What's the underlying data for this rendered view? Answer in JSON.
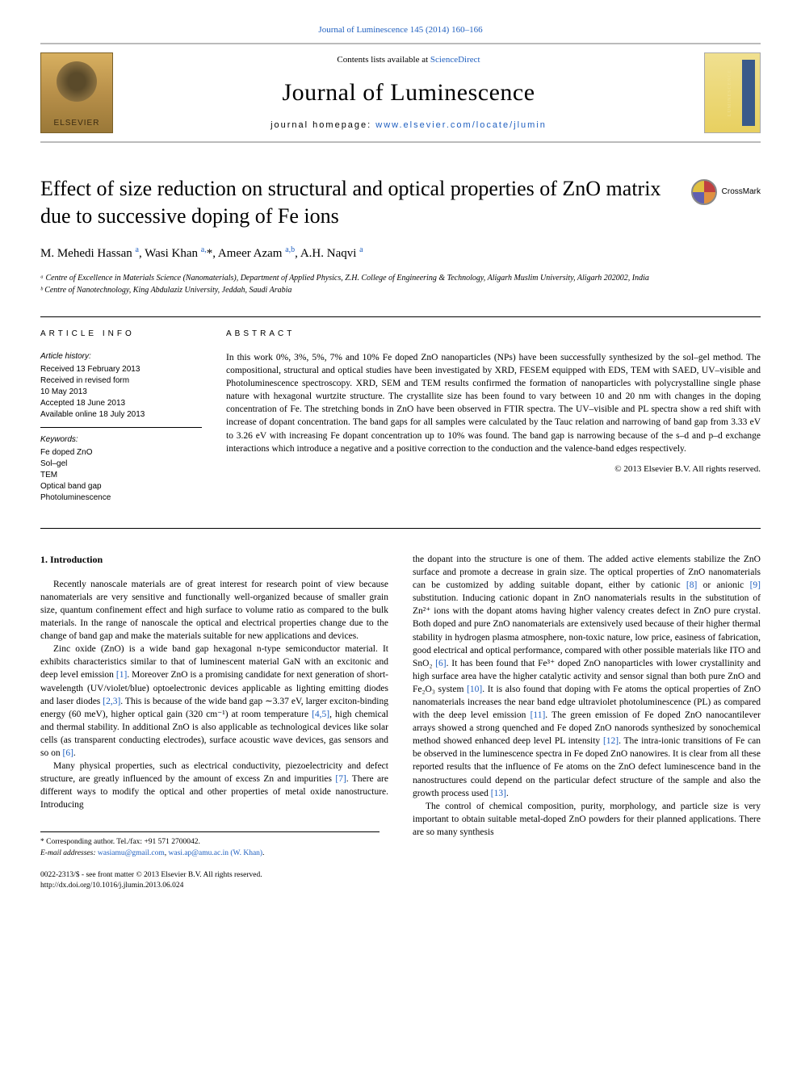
{
  "top_link": "Journal of Luminescence 145 (2014) 160–166",
  "header": {
    "contents_prefix": "Contents lists available at ",
    "contents_link": "ScienceDirect",
    "journal_name": "Journal of Luminescence",
    "homepage_prefix": "journal homepage: ",
    "homepage_link": "www.elsevier.com/locate/jlumin"
  },
  "crossmark_label": "CrossMark",
  "title": "Effect of size reduction on structural and optical properties of ZnO matrix due to successive doping of Fe ions",
  "authors_html": "M. Mehedi Hassan <sup>a</sup>, Wasi Khan <sup>a,</sup><span class='ast'>*</span>, Ameer Azam <sup>a,b</sup>, A.H. Naqvi <sup>a</sup>",
  "affiliations": [
    "ᵃ Centre of Excellence in Materials Science (Nanomaterials), Department of Applied Physics, Z.H. College of Engineering & Technology, Aligarh Muslim University, Aligarh 202002, India",
    "ᵇ Centre of Nanotechnology, King Abdulaziz University, Jeddah, Saudi Arabia"
  ],
  "article_info": {
    "heading": "article info",
    "history_label": "Article history:",
    "history": [
      "Received 13 February 2013",
      "Received in revised form",
      "10 May 2013",
      "Accepted 18 June 2013",
      "Available online 18 July 2013"
    ],
    "keywords_label": "Keywords:",
    "keywords": [
      "Fe doped ZnO",
      "Sol–gel",
      "TEM",
      "Optical band gap",
      "Photoluminescence"
    ]
  },
  "abstract": {
    "heading": "abstract",
    "text": "In this work 0%, 3%, 5%, 7% and 10% Fe doped ZnO nanoparticles (NPs) have been successfully synthesized by the sol–gel method. The compositional, structural and optical studies have been investigated by XRD, FESEM equipped with EDS, TEM with SAED, UV–visible and Photoluminescence spectroscopy. XRD, SEM and TEM results confirmed the formation of nanoparticles with polycrystalline single phase nature with hexagonal wurtzite structure. The crystallite size has been found to vary between 10 and 20 nm with changes in the doping concentration of Fe. The stretching bonds in ZnO have been observed in FTIR spectra. The UV–visible and PL spectra show a red shift with increase of dopant concentration. The band gaps for all samples were calculated by the Tauc relation and narrowing of band gap from 3.33 eV to 3.26 eV with increasing Fe dopant concentration up to 10% was found. The band gap is narrowing because of the s–d and p–d exchange interactions which introduce a negative and a positive correction to the conduction and the valence-band edges respectively.",
    "copyright": "© 2013 Elsevier B.V. All rights reserved."
  },
  "intro_heading": "1.  Introduction",
  "col1": {
    "p1": "Recently nanoscale materials are of great interest for research point of view because nanomaterials are very sensitive and functionally well-organized because of smaller grain size, quantum confinement effect and high surface to volume ratio as compared to the bulk materials. In the range of nanoscale the optical and electrical properties change due to the change of band gap and make the materials suitable for new applications and devices.",
    "p2a": "Zinc oxide (ZnO) is a wide band gap hexagonal n-type semiconductor material. It exhibits characteristics similar to that of luminescent material GaN with an excitonic and deep level emission ",
    "p2_cite1": "[1]",
    "p2b": ". Moreover ZnO is a promising candidate for next generation of short-wavelength (UV/violet/blue) optoelectronic devices applicable as lighting emitting diodes and laser diodes ",
    "p2_cite2": "[2,3]",
    "p2c": ". This is because of the wide band gap ∼3.37 eV, larger exciton-binding energy (60 meV), higher optical gain (320 cm⁻¹) at room temperature ",
    "p2_cite3": "[4,5]",
    "p2d": ", high chemical and thermal stability. In additional ZnO is also applicable as technological devices like solar cells (as transparent conducting electrodes), surface acoustic wave devices, gas sensors and so on ",
    "p2_cite4": "[6]",
    "p2e": ".",
    "p3a": "Many physical properties, such as electrical conductivity, piezoelectricity and defect structure, are greatly influenced by the amount of excess Zn and impurities ",
    "p3_cite1": "[7]",
    "p3b": ". There are different ways to modify the optical and other properties of metal oxide nanostructure. Introducing"
  },
  "col2": {
    "p1a": "the dopant into the structure is one of them. The added active elements stabilize the ZnO surface and promote a decrease in grain size. The optical properties of ZnO nanomaterials can be customized by adding suitable dopant, either by cationic ",
    "p1_cite1": "[8]",
    "p1b": " or anionic ",
    "p1_cite2": "[9]",
    "p1c": " substitution. Inducing cationic dopant in ZnO nanomaterials results in the substitution of Zn²⁺ ions with the dopant atoms having higher valency creates defect in ZnO pure crystal. Both doped and pure ZnO nanomaterials are extensively used because of their higher thermal stability in hydrogen plasma atmosphere, non-toxic nature, low price, easiness of fabrication, good electrical and optical performance, compared with other possible materials like ITO and SnO₂ ",
    "p1_cite3": "[6]",
    "p1d": ". It has been found that Fe³⁺ doped ZnO nanoparticles with lower crystallinity and high surface area have the higher catalytic activity and sensor signal than both pure ZnO and Fe₂O₃ system ",
    "p1_cite4": "[10]",
    "p1e": ". It is also found that doping with Fe atoms the optical properties of ZnO nanomaterials increases the near band edge ultraviolet photoluminescence (PL) as compared with the deep level emission ",
    "p1_cite5": "[11]",
    "p1f": ". The green emission of Fe doped ZnO nanocantilever arrays showed a strong quenched and Fe doped ZnO nanorods synthesized by sonochemical method showed enhanced deep level PL intensity ",
    "p1_cite6": "[12]",
    "p1g": ". The intra-ionic transitions of Fe can be observed in the luminescence spectra in Fe doped ZnO nanowires. It is clear from all these reported results that the influence of Fe atoms on the ZnO defect luminescence band in the nanostructures could depend on the particular defect structure of the sample and also the growth process used ",
    "p1_cite7": "[13]",
    "p1h": ".",
    "p2": "The control of chemical composition, purity, morphology, and particle size is very important to obtain suitable metal-doped ZnO powders for their planned applications. There are so many synthesis"
  },
  "footnotes": {
    "corr": "* Corresponding author. Tel./fax: +91 571 2700042.",
    "email_label": "E-mail addresses: ",
    "email1": "wasiamu@gmail.com",
    "email_sep": ", ",
    "email2": "wasi.ap@amu.ac.in (W. Khan)",
    "email_end": "."
  },
  "footer": {
    "issn": "0022-2313/$ - see front matter © 2013 Elsevier B.V. All rights reserved.",
    "doi": "http://dx.doi.org/10.1016/j.jlumin.2013.06.024"
  }
}
